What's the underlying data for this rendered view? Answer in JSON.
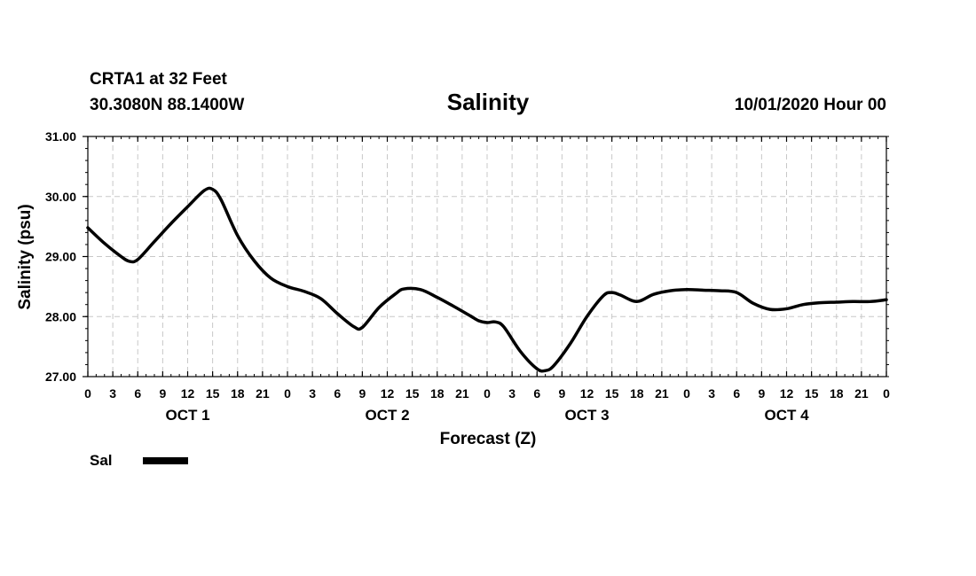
{
  "header": {
    "station": "CRTA1 at 32 Feet",
    "coords": "30.3080N 88.1400W",
    "title": "Salinity",
    "datetime": "10/01/2020 Hour 00"
  },
  "legend": {
    "label": "Sal"
  },
  "chart_data": {
    "type": "line",
    "title": "Salinity",
    "xlabel": "Forecast (Z)",
    "ylabel": "Salinity (psu)",
    "ylim": [
      27.0,
      31.0
    ],
    "yticks": [
      "27.00",
      "28.00",
      "29.00",
      "30.00",
      "31.00"
    ],
    "xlim": [
      0,
      96
    ],
    "xtick_labels": [
      "0",
      "3",
      "6",
      "9",
      "12",
      "15",
      "18",
      "21",
      "0",
      "3",
      "6",
      "9",
      "12",
      "15",
      "18",
      "21",
      "0",
      "3",
      "6",
      "9",
      "12",
      "15",
      "18",
      "21",
      "0",
      "3",
      "6",
      "9",
      "12",
      "15",
      "18",
      "21",
      "0"
    ],
    "day_labels": [
      "OCT 1",
      "OCT 2",
      "OCT 3",
      "OCT 4"
    ],
    "grid": true,
    "legend_position": "bottom-left",
    "series": [
      {
        "name": "Sal",
        "color": "#000000",
        "x": [
          0,
          2,
          4,
          5,
          6,
          8,
          10,
          12,
          14,
          15,
          16,
          18,
          20,
          22,
          24,
          26,
          28,
          30,
          32,
          33,
          35,
          37,
          38,
          40,
          42,
          44,
          46,
          47,
          48,
          49,
          50,
          52,
          54,
          55,
          56,
          58,
          60,
          62,
          63,
          64,
          66,
          68,
          70,
          72,
          74,
          76,
          78,
          80,
          82,
          84,
          86,
          88,
          90,
          92,
          94,
          96
        ],
        "values": [
          29.48,
          29.22,
          29.0,
          28.92,
          28.95,
          29.25,
          29.55,
          29.83,
          30.1,
          30.12,
          29.95,
          29.35,
          28.93,
          28.64,
          28.5,
          28.42,
          28.3,
          28.05,
          27.83,
          27.82,
          28.15,
          28.38,
          28.46,
          28.45,
          28.32,
          28.17,
          28.01,
          27.93,
          27.9,
          27.91,
          27.83,
          27.42,
          27.13,
          27.1,
          27.18,
          27.55,
          28.0,
          28.35,
          28.4,
          28.36,
          28.25,
          28.37,
          28.43,
          28.45,
          28.44,
          28.43,
          28.4,
          28.22,
          28.12,
          28.13,
          28.2,
          28.23,
          28.24,
          28.25,
          28.25,
          28.28
        ]
      }
    ]
  }
}
